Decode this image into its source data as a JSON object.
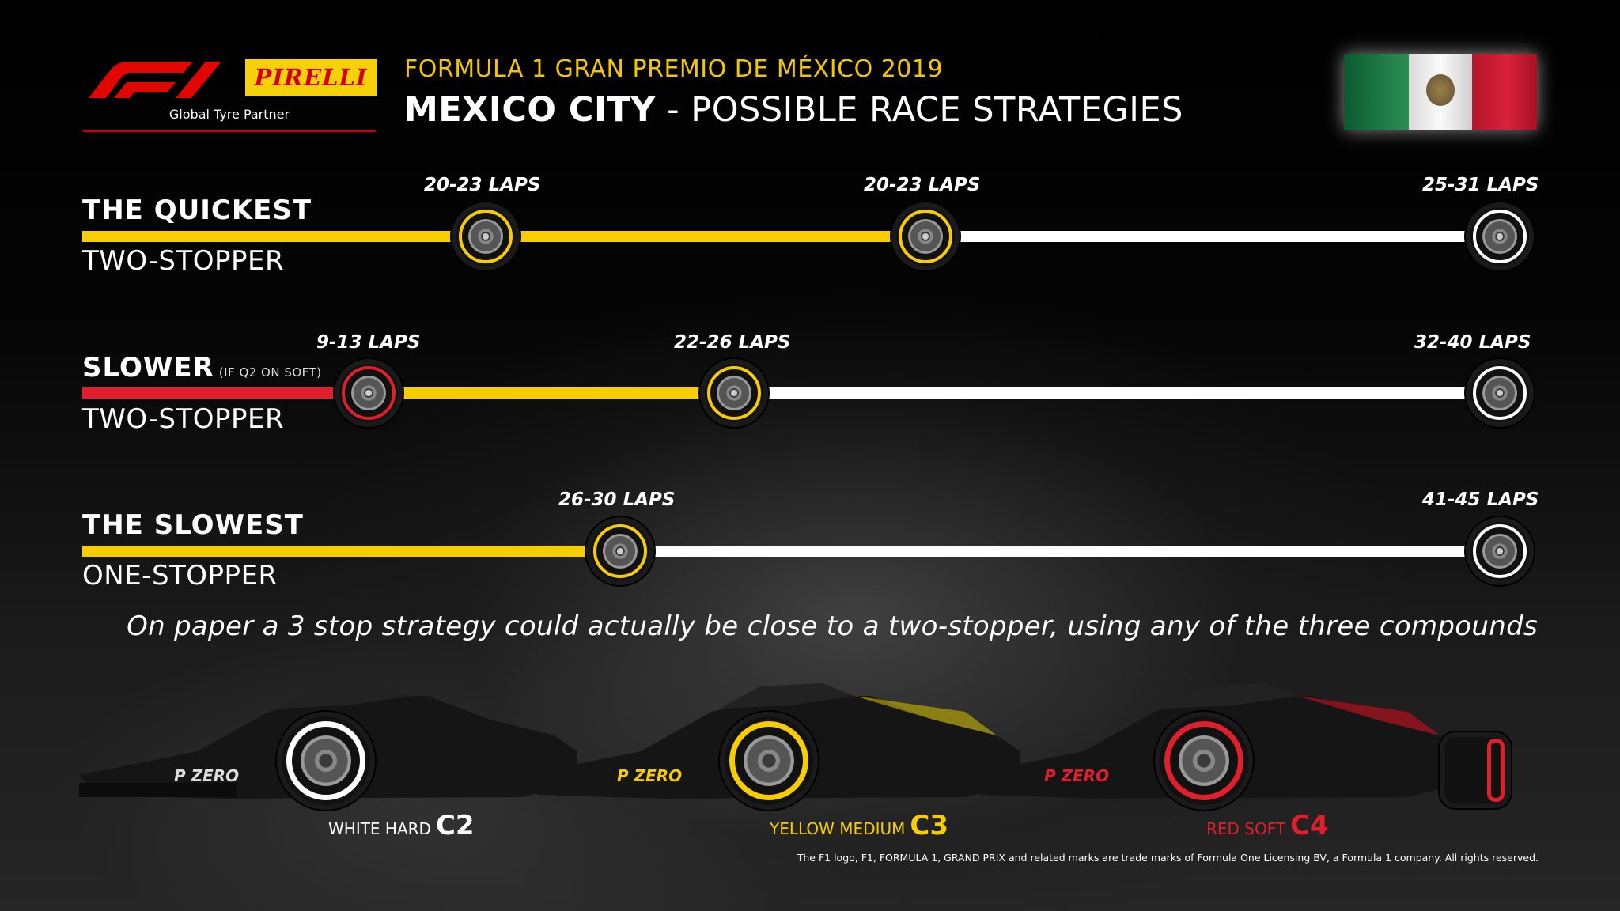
{
  "header": {
    "tagline": "Global Tyre Partner",
    "pirelli_logo_text": "PIRELLI",
    "event_title": "FORMULA 1 GRAN PREMIO DE MÉXICO 2019",
    "title_bold": "MEXICO CITY",
    "title_rest": " - POSSIBLE RACE STRATEGIES"
  },
  "strategies": [
    {
      "title": "THE QUICKEST",
      "subtitle": "TWO-STOPPER",
      "note": "",
      "stints": [
        {
          "laps": "20-23 LAPS",
          "compound": "medium",
          "color": "#f7cc00"
        },
        {
          "laps": "20-23 LAPS",
          "compound": "medium",
          "color": "#f7cc00"
        },
        {
          "laps": "25-31 LAPS",
          "compound": "hard",
          "color": "#ffffff"
        }
      ]
    },
    {
      "title": "SLOWER",
      "subtitle": "TWO-STOPPER",
      "note": "(IF Q2 ON SOFT)",
      "stints": [
        {
          "laps": "9-13 LAPS",
          "compound": "soft",
          "color": "#e01f2c"
        },
        {
          "laps": "22-26 LAPS",
          "compound": "medium",
          "color": "#f7cc00"
        },
        {
          "laps": "32-40 LAPS",
          "compound": "hard",
          "color": "#ffffff"
        }
      ]
    },
    {
      "title": "THE SLOWEST",
      "subtitle": "ONE-STOPPER",
      "note": "",
      "stints": [
        {
          "laps": "26-30 LAPS",
          "compound": "medium",
          "color": "#f7cc00"
        },
        {
          "laps": "41-45 LAPS",
          "compound": "hard",
          "color": "#ffffff"
        }
      ]
    }
  ],
  "note": "On paper a 3 stop strategy could actually be close to a two-stopper, using any of the three compounds",
  "compounds": [
    {
      "label": "WHITE HARD",
      "code": "C2",
      "color": "#ffffff"
    },
    {
      "label": "YELLOW MEDIUM",
      "code": "C3",
      "color": "#f7cc00"
    },
    {
      "label": "RED SOFT",
      "code": "C4",
      "color": "#e01f2c"
    }
  ],
  "car_livery_text": "P ZERO",
  "legal": "The F1 logo, F1, FORMULA 1, GRAND PRIX and related marks are trade marks of Formula One Licensing BV, a Formula 1 company. All rights reserved."
}
